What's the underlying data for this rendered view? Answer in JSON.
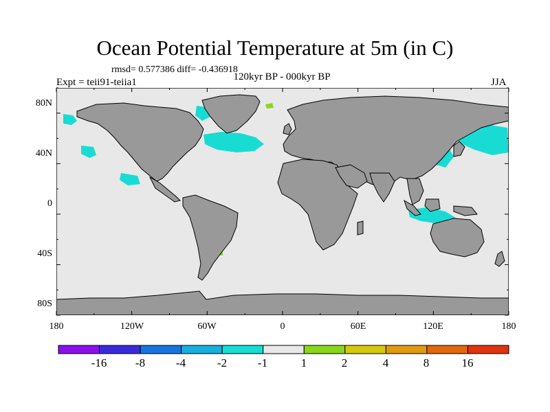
{
  "title": "Ocean Potential Temperature at 5m (in C)",
  "stats": "rmsd= 0.577386 diff= -0.436918",
  "experiment": "Expt = teii91-teiia1",
  "period": "120kyr BP - 000kyr BP",
  "season": "JJA",
  "map": {
    "projection": "cylindrical equidistant",
    "x_range": [
      -180,
      180
    ],
    "y_range": [
      -90,
      90
    ],
    "x_ticks": [
      "180",
      "120W",
      "60W",
      "0",
      "60E",
      "120E",
      "180"
    ],
    "y_ticks": [
      "80N",
      "40N",
      "0",
      "40S",
      "80S"
    ],
    "ocean_color": "#e8e8e8",
    "land_color": "#999999"
  },
  "colorbar": {
    "labels": [
      "-16",
      "-8",
      "-4",
      "-2",
      "-1",
      "1",
      "2",
      "4",
      "8",
      "16"
    ],
    "colors": [
      "#8a12e8",
      "#3a2bd8",
      "#1a74e0",
      "#19aedd",
      "#18dcd4",
      "#e8e8e8",
      "#87d61c",
      "#d6c80e",
      "#e09a12",
      "#e0680e",
      "#dc3410"
    ]
  }
}
